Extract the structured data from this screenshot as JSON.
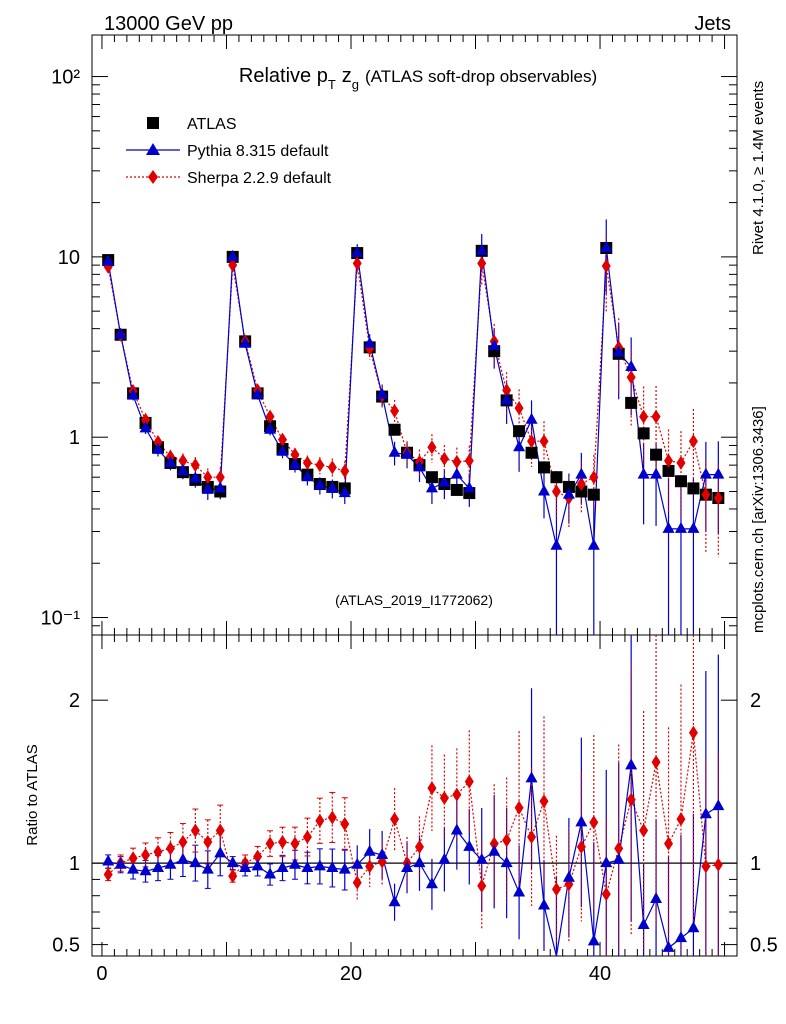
{
  "header": {
    "left": "13000 GeV pp",
    "right": "Jets"
  },
  "side_text": {
    "rivet": "Rivet 4.1.0, ≥ 1.4M events",
    "mcplots": "mcplots.cern.ch [arXiv:1306.3436]"
  },
  "colors": {
    "atlas": "#000000",
    "pythia": "#0000cc",
    "sherpa": "#e00000",
    "watermark": "#999999"
  },
  "chart_data": {
    "type": "scatter",
    "title_parts": {
      "relative": "Relative p",
      "pt_sub": "T",
      "z": "z",
      "z_sub": "g",
      "rest": "(ATLAS soft-drop observables)"
    },
    "watermark": "(ATLAS_2019_I1772062)",
    "legend": {
      "atlas": "ATLAS",
      "pythia": "Pythia 8.315 default",
      "sherpa": "Sherpa 2.2.9 default"
    },
    "x": [
      0.5,
      1.5,
      2.5,
      3.5,
      4.5,
      5.5,
      6.5,
      7.5,
      8.5,
      9.5,
      10.5,
      11.5,
      12.5,
      13.5,
      14.5,
      15.5,
      16.5,
      17.5,
      18.5,
      19.5,
      20.5,
      21.5,
      22.5,
      23.5,
      24.5,
      25.5,
      26.5,
      27.5,
      28.5,
      29.5,
      30.5,
      31.5,
      32.5,
      33.5,
      34.5,
      35.5,
      36.5,
      37.5,
      38.5,
      39.5,
      40.5,
      41.5,
      42.5,
      43.5,
      44.5,
      45.5,
      46.5,
      47.5,
      48.5,
      49.5
    ],
    "xlim": [
      -0.8,
      51
    ],
    "xticks": [
      "0",
      "20",
      "40"
    ],
    "top_panel": {
      "scale": "log",
      "ylim": [
        0.08,
        170
      ],
      "yticks": [
        "10⁻¹",
        "1",
        "10",
        "10²"
      ],
      "atlas": [
        9.6,
        3.7,
        1.75,
        1.2,
        0.88,
        0.72,
        0.64,
        0.58,
        0.53,
        0.5,
        10.0,
        3.4,
        1.75,
        1.15,
        0.86,
        0.71,
        0.62,
        0.55,
        0.53,
        0.52,
        10.5,
        3.15,
        1.68,
        1.1,
        0.82,
        0.7,
        0.6,
        0.55,
        0.51,
        0.49,
        10.8,
        3.0,
        1.6,
        1.08,
        0.82,
        0.68,
        0.6,
        0.53,
        0.5,
        0.48,
        11.2,
        2.9,
        1.55,
        1.05,
        0.8,
        0.65,
        0.57,
        0.52,
        0.48,
        0.46
      ],
      "pythia": [
        9.4,
        3.7,
        1.7,
        1.12,
        0.85,
        0.72,
        0.65,
        0.59,
        0.51,
        0.52,
        10.0,
        3.3,
        1.72,
        1.1,
        0.83,
        0.7,
        0.6,
        0.54,
        0.52,
        0.49,
        10.5,
        3.3,
        1.72,
        0.82,
        0.8,
        0.68,
        0.52,
        0.56,
        0.62,
        0.52,
        10.8,
        3.2,
        1.6,
        0.88,
        1.25,
        0.5,
        0.25,
        0.48,
        0.62,
        0.25,
        11.2,
        2.95,
        2.45,
        0.62,
        0.62,
        0.31,
        0.31,
        0.31,
        0.62,
        0.62
      ],
      "sherpa": [
        8.8,
        3.7,
        1.8,
        1.25,
        0.94,
        0.78,
        0.74,
        0.7,
        0.6,
        0.6,
        9.0,
        3.4,
        1.82,
        1.3,
        0.97,
        0.8,
        0.72,
        0.7,
        0.68,
        0.65,
        9.2,
        3.1,
        1.7,
        1.4,
        0.82,
        0.73,
        0.88,
        0.76,
        0.73,
        0.74,
        9.2,
        3.4,
        1.82,
        1.45,
        0.95,
        0.95,
        0.5,
        0.46,
        0.55,
        0.6,
        8.9,
        3.15,
        2.15,
        1.3,
        1.3,
        0.74,
        0.72,
        0.95,
        0.48,
        0.46
      ]
    },
    "ratio_panel": {
      "ylabel": "Ratio to ATLAS",
      "ylim": [
        0.43,
        2.4
      ],
      "yticks": [
        "0.5",
        "1",
        "2"
      ],
      "pythia": [
        1.01,
        0.99,
        0.96,
        0.95,
        0.97,
        0.99,
        1.02,
        1.0,
        0.96,
        1.06,
        1.0,
        0.97,
        0.98,
        0.93,
        0.97,
        0.99,
        0.97,
        0.98,
        0.97,
        0.96,
        0.99,
        1.07,
        1.05,
        0.76,
        0.97,
        1.0,
        0.87,
        1.02,
        1.2,
        1.1,
        1.02,
        1.07,
        1.0,
        0.82,
        1.52,
        0.74,
        0.42,
        0.91,
        1.25,
        0.52,
        1.0,
        1.02,
        1.6,
        0.62,
        0.78,
        0.48,
        0.54,
        0.6,
        1.3,
        1.35
      ],
      "sherpa": [
        0.93,
        1.0,
        1.03,
        1.05,
        1.07,
        1.09,
        1.13,
        1.2,
        1.13,
        1.2,
        0.92,
        1.0,
        1.04,
        1.12,
        1.13,
        1.12,
        1.16,
        1.26,
        1.28,
        1.24,
        0.88,
        0.98,
        1.01,
        1.27,
        1.0,
        1.1,
        1.46,
        1.4,
        1.42,
        1.5,
        0.86,
        1.12,
        1.14,
        1.34,
        1.16,
        1.38,
        0.84,
        0.87,
        1.1,
        1.25,
        0.81,
        1.09,
        1.39,
        1.2,
        1.62,
        1.12,
        1.27,
        1.8,
        0.98,
        0.99
      ]
    }
  }
}
